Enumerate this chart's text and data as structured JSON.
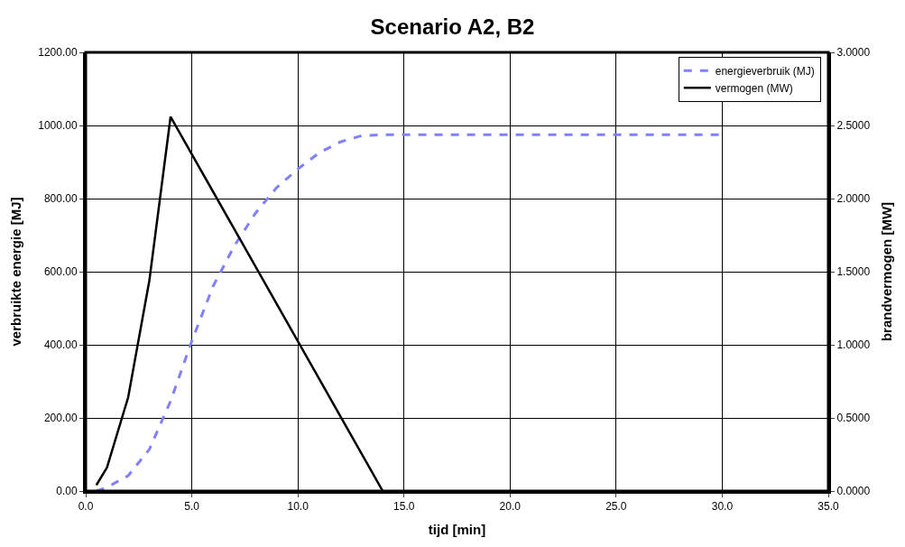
{
  "chart_data": {
    "type": "line",
    "title": "Scenario A2, B2",
    "xlabel": "tijd [min]",
    "ylabel": "verbruikte energie [MJ]",
    "y2label": "brandvermogen [MW]",
    "series": [
      {
        "name": "energieverbruik (MJ)",
        "color": "#8080ff",
        "line_style": "dashed",
        "x": [
          0.5,
          1,
          2,
          3,
          4,
          5,
          6,
          7,
          8,
          9,
          10,
          11,
          12,
          13,
          14,
          30
        ],
        "values": [
          0,
          10,
          42,
          114,
          246,
          410,
          560,
          670,
          760,
          830,
          881,
          925,
          955,
          972,
          975,
          975
        ]
      },
      {
        "name": "vermogen (MW)",
        "color": "#000000",
        "line_style": "solid",
        "axis": "y2",
        "x": [
          0.5,
          1,
          2,
          3,
          4,
          14
        ],
        "values": [
          0.04,
          0.16,
          0.64,
          1.44,
          2.56,
          0
        ]
      }
    ],
    "xlim": [
      0,
      35
    ],
    "xticks": [
      {
        "value": 0,
        "label": "0.0"
      },
      {
        "value": 5,
        "label": "5.0"
      },
      {
        "value": 10,
        "label": "10.0"
      },
      {
        "value": 15,
        "label": "15.0"
      },
      {
        "value": 20,
        "label": "20.0"
      },
      {
        "value": 25,
        "label": "25.0"
      },
      {
        "value": 30,
        "label": "30.0"
      },
      {
        "value": 35,
        "label": "35.0"
      }
    ],
    "ylim": [
      0,
      1200
    ],
    "yticks": [
      {
        "value": 0,
        "label": "0.00"
      },
      {
        "value": 200,
        "label": "200.00"
      },
      {
        "value": 400,
        "label": "400.00"
      },
      {
        "value": 600,
        "label": "600.00"
      },
      {
        "value": 800,
        "label": "800.00"
      },
      {
        "value": 1000,
        "label": "1000.00"
      },
      {
        "value": 1200,
        "label": "1200.00"
      }
    ],
    "y2lim": [
      0,
      3
    ],
    "y2ticks": [
      {
        "value": 0,
        "label": "0.0000"
      },
      {
        "value": 0.5,
        "label": "0.5000"
      },
      {
        "value": 1,
        "label": "1.0000"
      },
      {
        "value": 1.5,
        "label": "1.5000"
      },
      {
        "value": 2,
        "label": "2.0000"
      },
      {
        "value": 2.5,
        "label": "2.5000"
      },
      {
        "value": 3,
        "label": "3.0000"
      }
    ],
    "grid": true,
    "legend": "top right",
    "marker": "none"
  }
}
